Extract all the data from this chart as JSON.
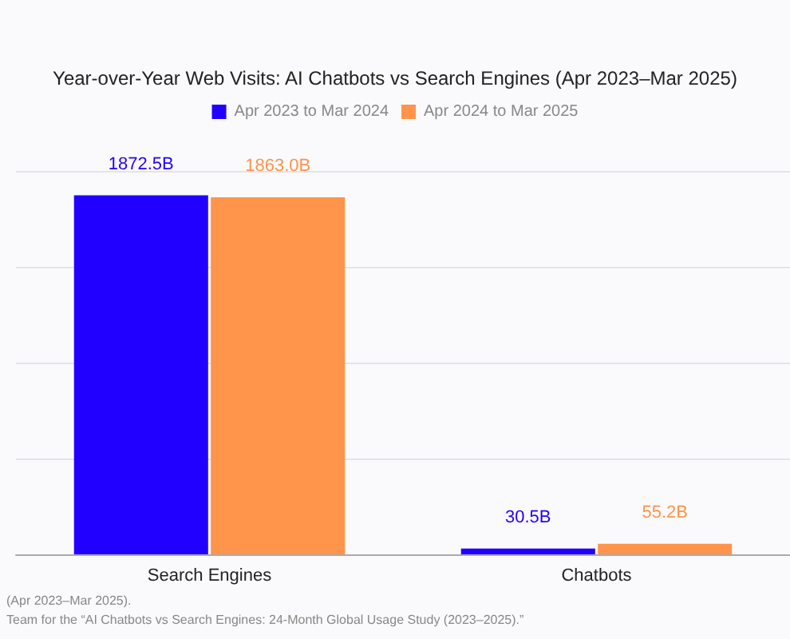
{
  "chart_data": {
    "type": "bar",
    "title": "Year-over-Year Web Visits: AI Chatbots vs Search Engines (Apr 2023–Mar 2025)",
    "categories": [
      "Search Engines",
      "Chatbots"
    ],
    "series": [
      {
        "name": "Apr 2023 to Mar 2024",
        "color": "#2200ff",
        "values": [
          1872.5,
          30.5
        ],
        "value_labels": [
          "1872.5B",
          "30.5B"
        ]
      },
      {
        "name": "Apr 2024 to Mar 2025",
        "color": "#ff944a",
        "values": [
          1863.0,
          55.2
        ],
        "value_labels": [
          "1863.0B",
          "55.2B"
        ]
      }
    ],
    "ylim": [
      0,
      2000
    ],
    "yticks": [
      {
        "value": 0,
        "label": null
      },
      {
        "value": 500,
        "label": null
      },
      {
        "value": 1000,
        "label": null
      },
      {
        "value": 1500,
        "label": null
      },
      {
        "value": 2000,
        "label": null
      }
    ],
    "tick_labels": "x",
    "grid": "y",
    "legend": "top",
    "annotations": [
      "(Apr 2023–Mar 2025).",
      "Team for the “AI Chatbots vs Search Engines: 24-Month Global Usage Study (2023–2025).”"
    ]
  }
}
